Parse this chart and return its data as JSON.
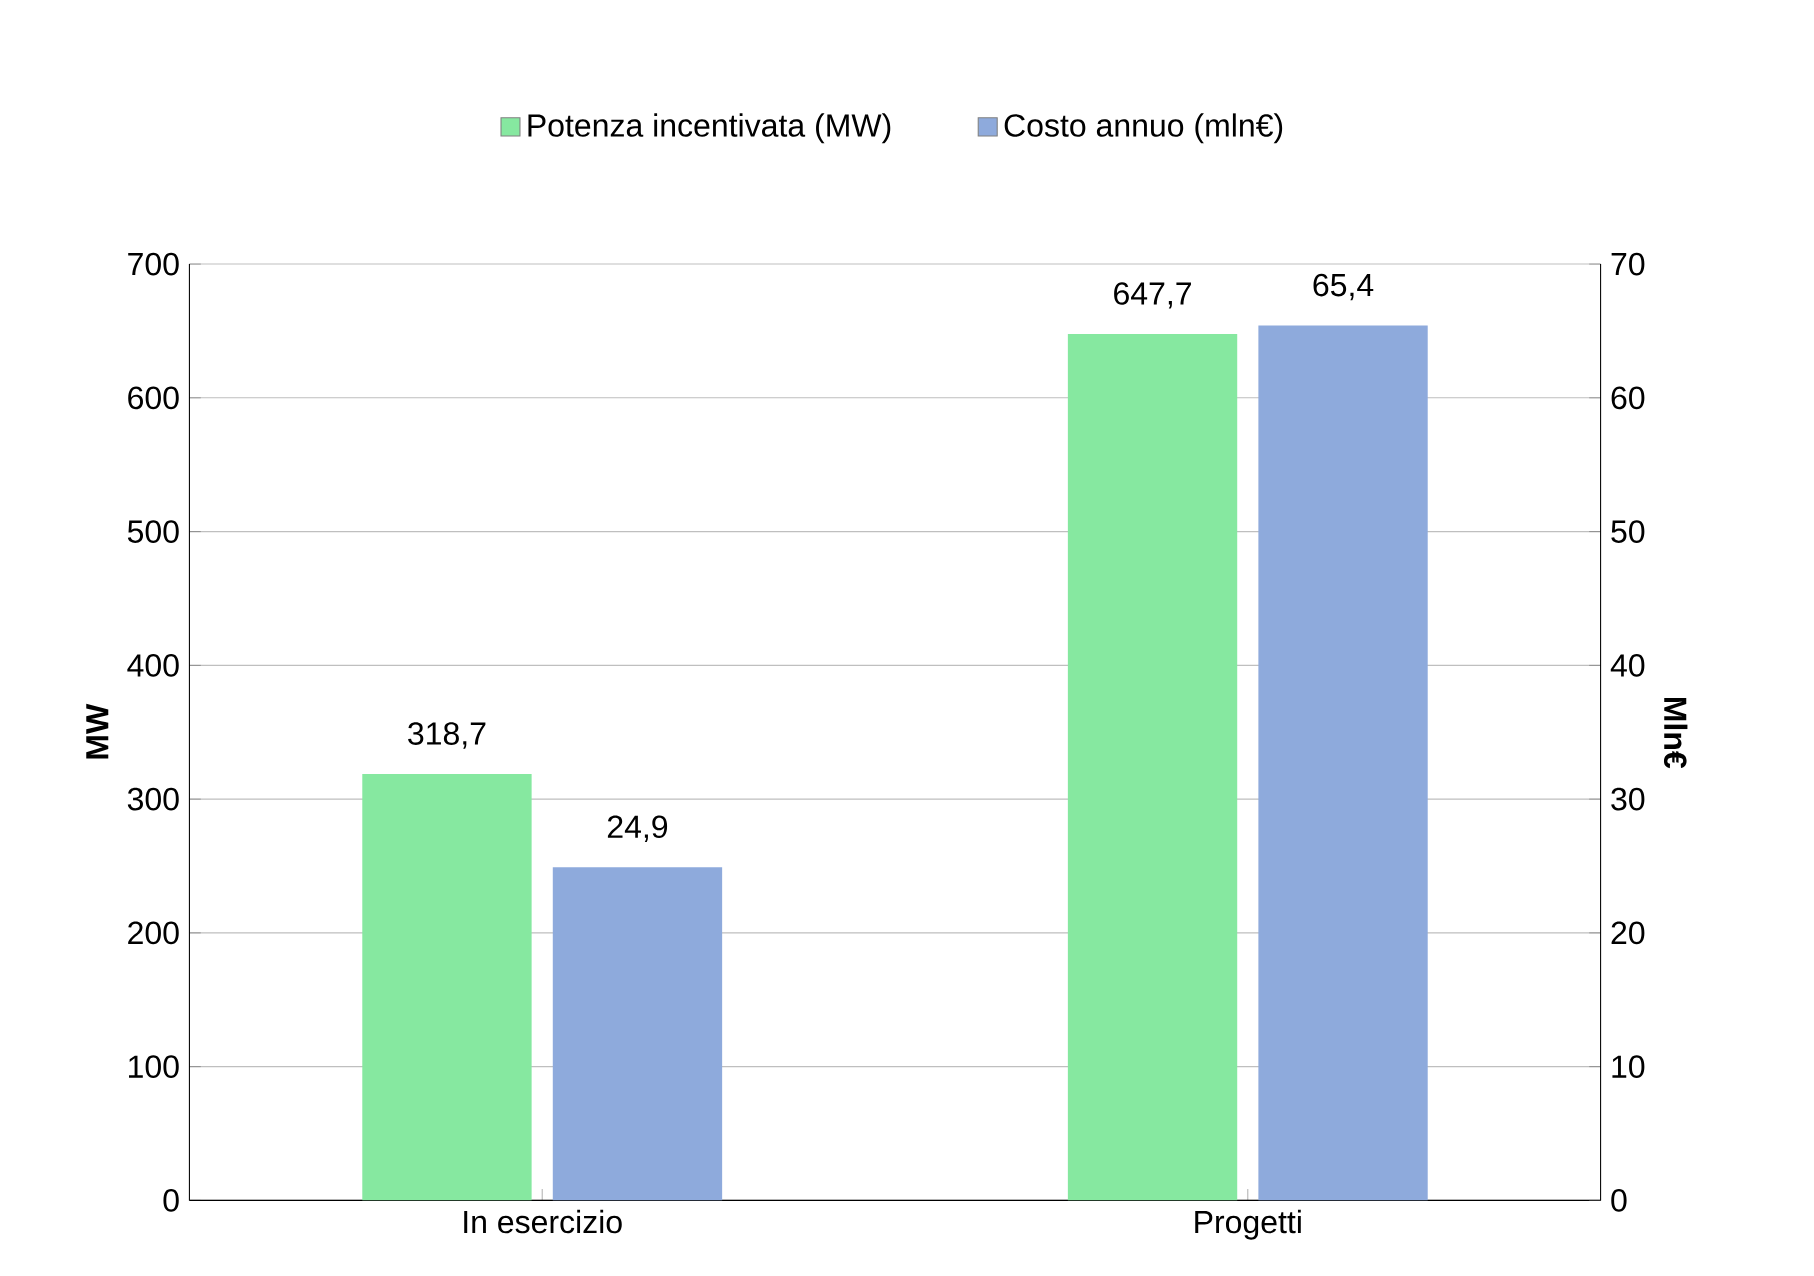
{
  "chart_data": {
    "type": "bar",
    "categories": [
      "In esercizio",
      "Progetti"
    ],
    "series": [
      {
        "name": "Potenza incentivata (MW)",
        "color": "#86e8a0",
        "values": [
          318.7,
          647.7
        ],
        "value_labels": [
          "318,7",
          "647,7"
        ]
      },
      {
        "name": "Costo annuo (mln€)",
        "color": "#8eaadc",
        "values": [
          24.9,
          65.4
        ],
        "value_labels": [
          "24,9",
          "65,4"
        ],
        "axis": "y2"
      }
    ],
    "ylabel": "MW",
    "y2label": "Mln€",
    "ylim": [
      0,
      700
    ],
    "yticks": [
      0,
      100,
      200,
      300,
      400,
      500,
      600,
      700
    ],
    "y2lim": [
      0,
      70
    ],
    "y2ticks": [
      0,
      10,
      20,
      30,
      40,
      50,
      60,
      70
    ],
    "grid": "y",
    "legend": "top"
  }
}
